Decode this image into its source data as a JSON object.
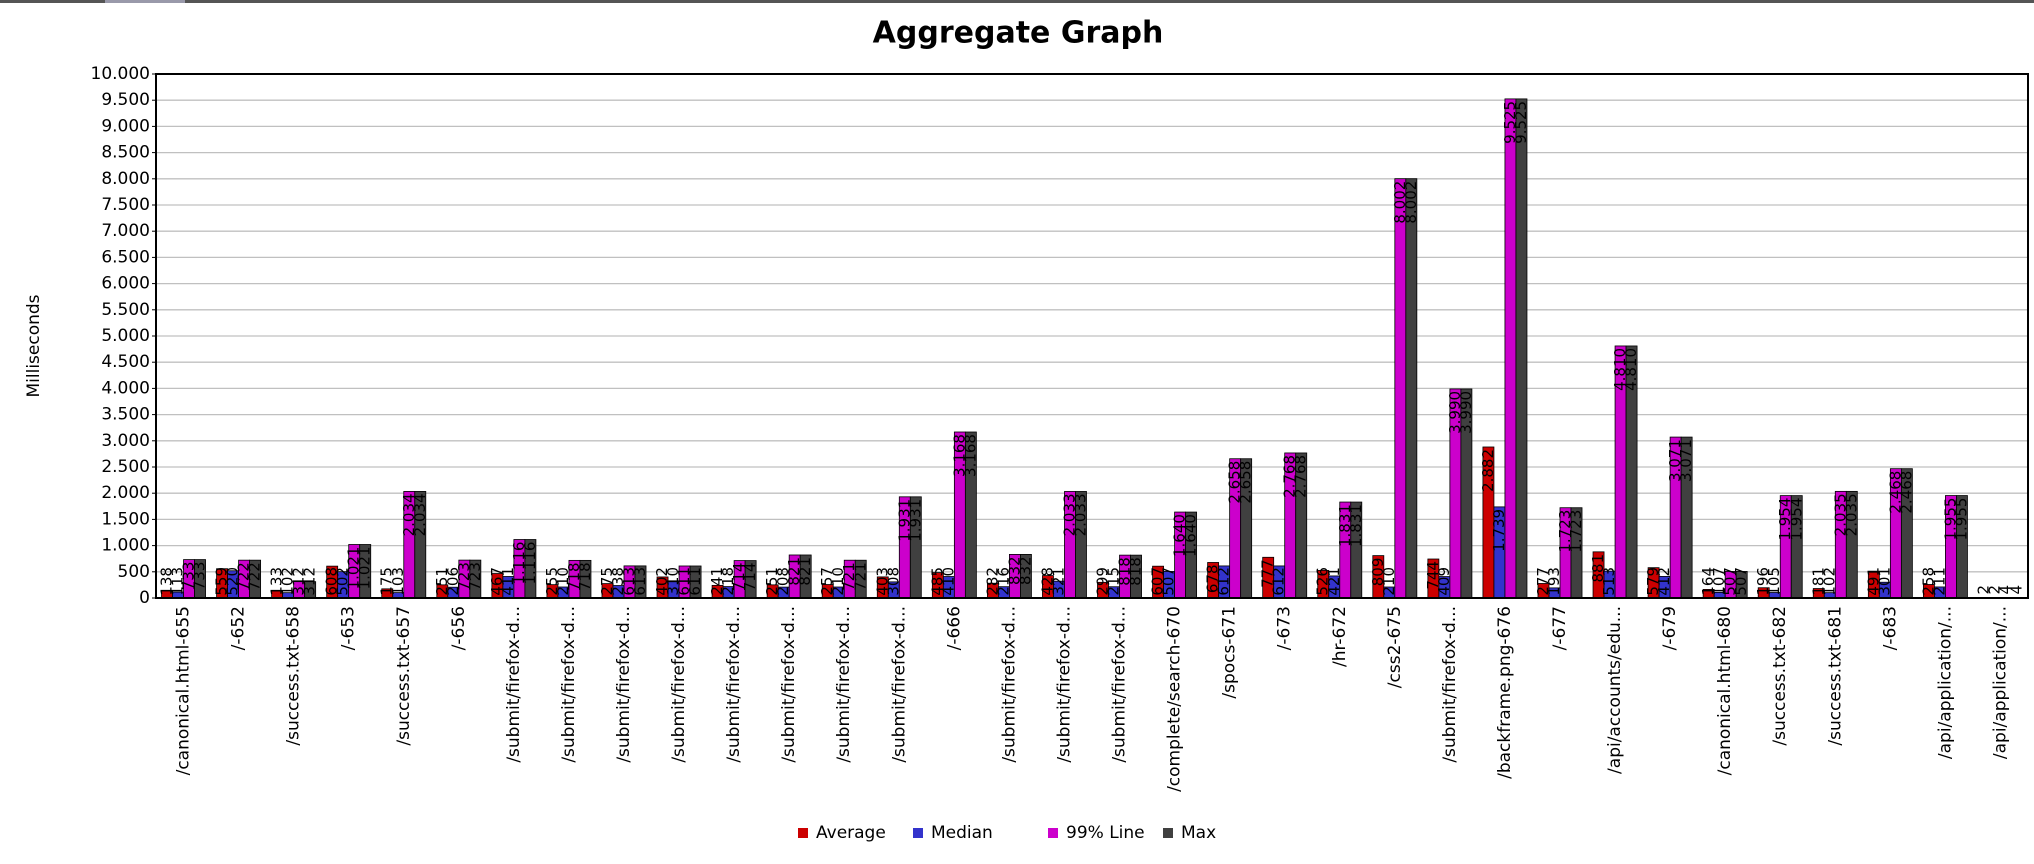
{
  "chart_data": {
    "type": "bar",
    "title": "Aggregate Graph",
    "y_label": "Milliseconds",
    "categories": [
      "/canonical.html-655",
      "/-652",
      "/success.txt-658",
      "/-653",
      "/success.txt-657",
      "/-656",
      "/submit/firefox-d...",
      "/submit/firefox-d...",
      "/submit/firefox-d...",
      "/submit/firefox-d...",
      "/submit/firefox-d...",
      "/submit/firefox-d...",
      "/submit/firefox-d...",
      "/submit/firefox-d...",
      "/-666",
      "/submit/firefox-d...",
      "/submit/firefox-d...",
      "/submit/firefox-d...",
      "/complete/search-670",
      "/spocs-671",
      "/-673",
      "/hr-672",
      "/css2-675",
      "/submit/firefox-d...",
      "/backframe.png-676",
      "/-677",
      "/api/accounts/edu...",
      "/-679",
      "/canonical.html-680",
      "/success.txt-682",
      "/success.txt-681",
      "/-683",
      "/api/application/...",
      "/api/application/..."
    ],
    "series": [
      {
        "name": "Average",
        "color": "#cc0000",
        "values": [
          138,
          559,
          133,
          608,
          175,
          251,
          467,
          255,
          275,
          402,
          241,
          251,
          257,
          403,
          485,
          282,
          428,
          299,
          607,
          678,
          777,
          526,
          809,
          744,
          2882,
          277,
          881,
          579,
          164,
          196,
          181,
          491,
          258,
          2
        ],
        "value_labels": [
          "138",
          "559",
          "133",
          "608",
          "175",
          "251",
          "467",
          "255",
          "275",
          "402",
          "241",
          "251",
          "257",
          "403",
          "485",
          "282",
          "428",
          "299",
          "607",
          "678",
          "777",
          "526",
          "809",
          "744",
          "2.882",
          "277",
          "881",
          "579",
          "164",
          "196",
          "181",
          "491",
          "258",
          "2"
        ]
      },
      {
        "name": "Median",
        "color": "#3333cc",
        "values": [
          113,
          520,
          102,
          502,
          103,
          206,
          411,
          210,
          238,
          310,
          218,
          208,
          210,
          308,
          410,
          216,
          321,
          215,
          507,
          612,
          612,
          421,
          210,
          409,
          1739,
          193,
          513,
          412,
          107,
          105,
          102,
          301,
          211,
          2
        ],
        "value_labels": [
          "113",
          "520",
          "102",
          "502",
          "103",
          "206",
          "411",
          "210",
          "238",
          "310",
          "218",
          "208",
          "210",
          "308",
          "410",
          "216",
          "321",
          "215",
          "507",
          "612",
          "612",
          "421",
          "210",
          "409",
          "1.739",
          "193",
          "513",
          "412",
          "107",
          "105",
          "102",
          "301",
          "211",
          "2"
        ]
      },
      {
        "name": "99% Line",
        "color": "#cc00cc",
        "values": [
          733,
          722,
          312,
          1021,
          2034,
          723,
          1116,
          718,
          613,
          611,
          714,
          821,
          721,
          1931,
          3168,
          832,
          2033,
          818,
          1640,
          2658,
          2768,
          1831,
          8002,
          3990,
          9525,
          1723,
          4810,
          3071,
          507,
          1954,
          2035,
          2468,
          1955,
          4
        ],
        "value_labels": [
          "733",
          "722",
          "312",
          "1.021",
          "2.034",
          "723",
          "1.116",
          "718",
          "613",
          "611",
          "714",
          "821",
          "721",
          "1.931",
          "3.168",
          "832",
          "2.033",
          "818",
          "1.640",
          "2.658",
          "2.768",
          "1.831",
          "8.002",
          "3.990",
          "9.525",
          "1.723",
          "4.810",
          "3.071",
          "507",
          "1.954",
          "2.035",
          "2.468",
          "1.955",
          "4"
        ]
      },
      {
        "name": "Max",
        "color": "#404040",
        "values": [
          733,
          722,
          312,
          1021,
          2034,
          723,
          1116,
          718,
          613,
          611,
          714,
          821,
          721,
          1931,
          3168,
          832,
          2033,
          818,
          1640,
          2658,
          2768,
          1831,
          8002,
          3990,
          9525,
          1723,
          4810,
          3071,
          507,
          1954,
          2035,
          2468,
          1955,
          4
        ],
        "value_labels": [
          "733",
          "722",
          "312",
          "1.021",
          "2.034",
          "723",
          "1.116",
          "718",
          "613",
          "611",
          "714",
          "821",
          "721",
          "1.931",
          "3.168",
          "832",
          "2.033",
          "818",
          "1.640",
          "2.658",
          "2.768",
          "1.831",
          "8.002",
          "3.990",
          "9.525",
          "1.723",
          "4.810",
          "3.071",
          "507",
          "1.954",
          "2.035",
          "2.468",
          "1.955",
          "4"
        ]
      }
    ],
    "ylim": [
      0,
      10000
    ],
    "yticks": [
      0,
      500,
      {
        "value": 1000,
        "label": "1.000"
      },
      {
        "value": 1500,
        "label": "1.500"
      },
      {
        "value": 2000,
        "label": "2.000"
      },
      {
        "value": 2500,
        "label": "2.500"
      },
      {
        "value": 3000,
        "label": "3.000"
      },
      {
        "value": 3500,
        "label": "3.500"
      },
      {
        "value": 4000,
        "label": "4.000"
      },
      {
        "value": 4500,
        "label": "4.500"
      },
      {
        "value": 5000,
        "label": "5.000"
      },
      {
        "value": 5500,
        "label": "5.500"
      },
      {
        "value": 6000,
        "label": "6.000"
      },
      {
        "value": 6500,
        "label": "6.500"
      },
      {
        "value": 7000,
        "label": "7.000"
      },
      {
        "value": 7500,
        "label": "7.500"
      },
      {
        "value": 8000,
        "label": "8.000"
      },
      {
        "value": 8500,
        "label": "8.500"
      },
      {
        "value": 9000,
        "label": "9.000"
      },
      {
        "value": 9500,
        "label": "9.500"
      },
      {
        "value": 10000,
        "label": "10.000"
      }
    ],
    "grid": true,
    "legend": "bottom"
  }
}
